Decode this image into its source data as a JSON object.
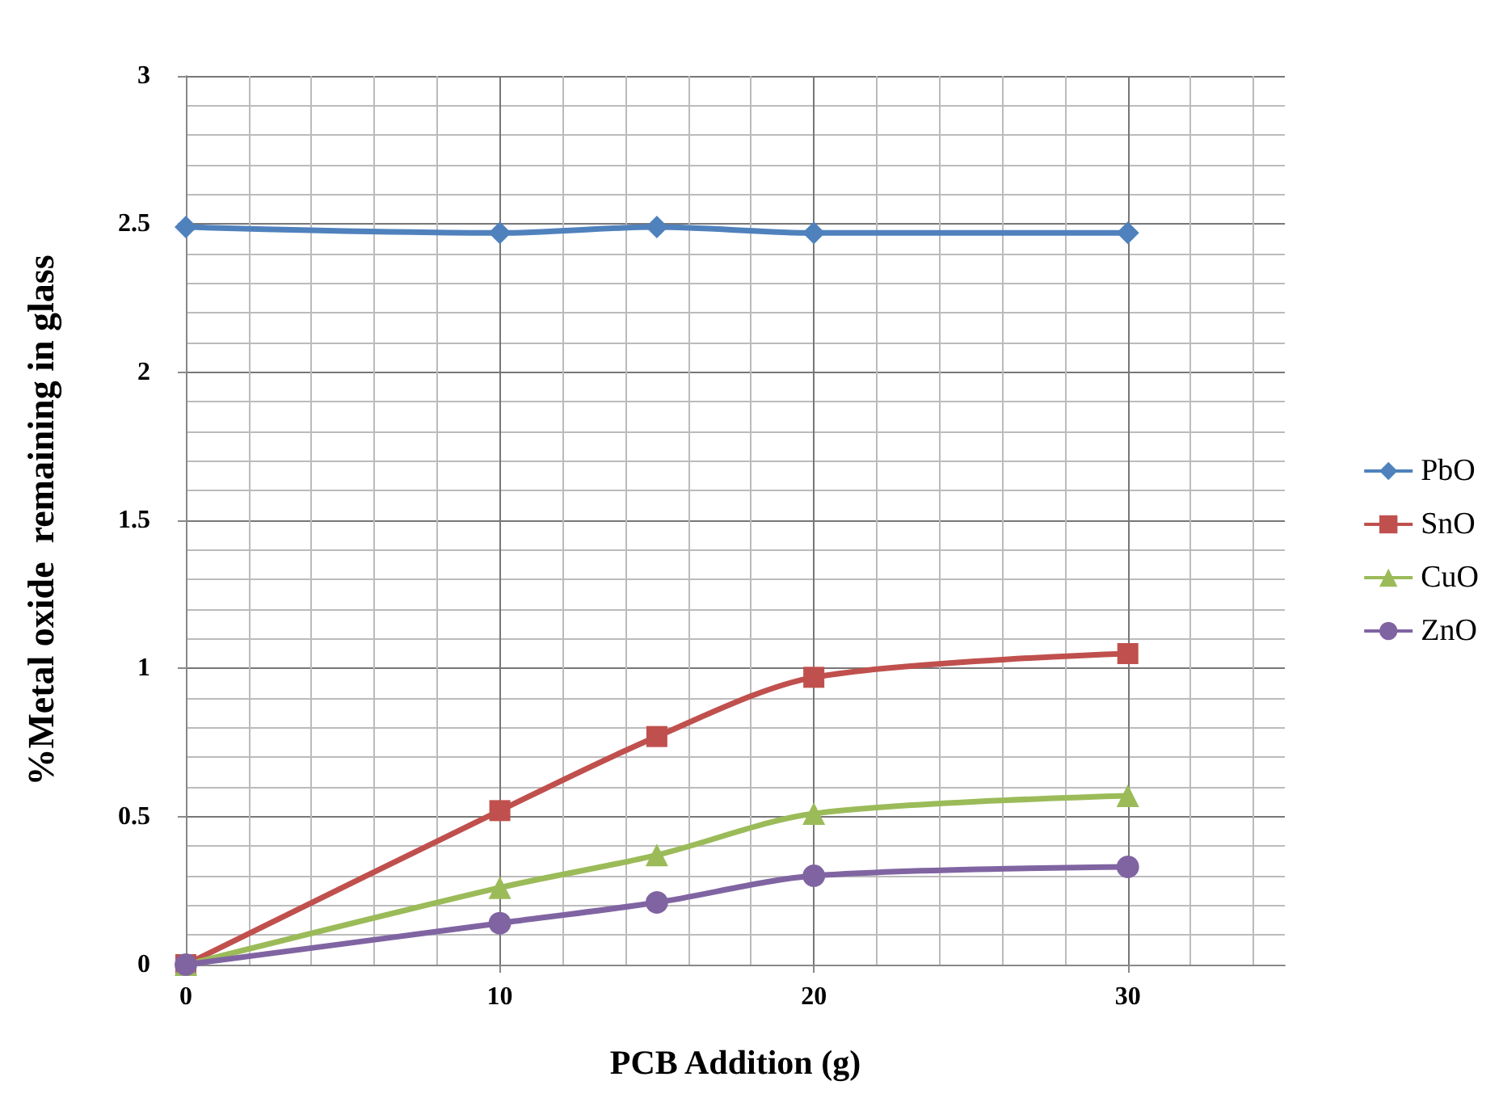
{
  "chart_data": {
    "type": "line",
    "xlabel": "PCB Addition (g)",
    "ylabel": "%Metal oxide  remaining in glass",
    "x": [
      0,
      10,
      15,
      20,
      30
    ],
    "series": [
      {
        "name": "PbO",
        "color": "#4f81bd",
        "marker": "diamond",
        "values": [
          2.49,
          2.47,
          2.49,
          2.47,
          2.47
        ]
      },
      {
        "name": "SnO",
        "color": "#c0504d",
        "marker": "square",
        "values": [
          0,
          0.52,
          0.77,
          0.97,
          1.05
        ]
      },
      {
        "name": "CuO",
        "color": "#9bbb59",
        "marker": "triangle",
        "values": [
          0,
          0.26,
          0.37,
          0.51,
          0.57
        ]
      },
      {
        "name": "ZnO",
        "color": "#8064a2",
        "marker": "circle",
        "values": [
          0,
          0.14,
          0.21,
          0.3,
          0.33
        ]
      }
    ],
    "xlim": [
      0,
      35
    ],
    "xticks": [
      0,
      10,
      20,
      30
    ],
    "ylim": [
      0,
      3
    ],
    "yticks": [
      0,
      0.5,
      1,
      1.5,
      2,
      2.5,
      3
    ],
    "grid": true,
    "legend": "right"
  }
}
